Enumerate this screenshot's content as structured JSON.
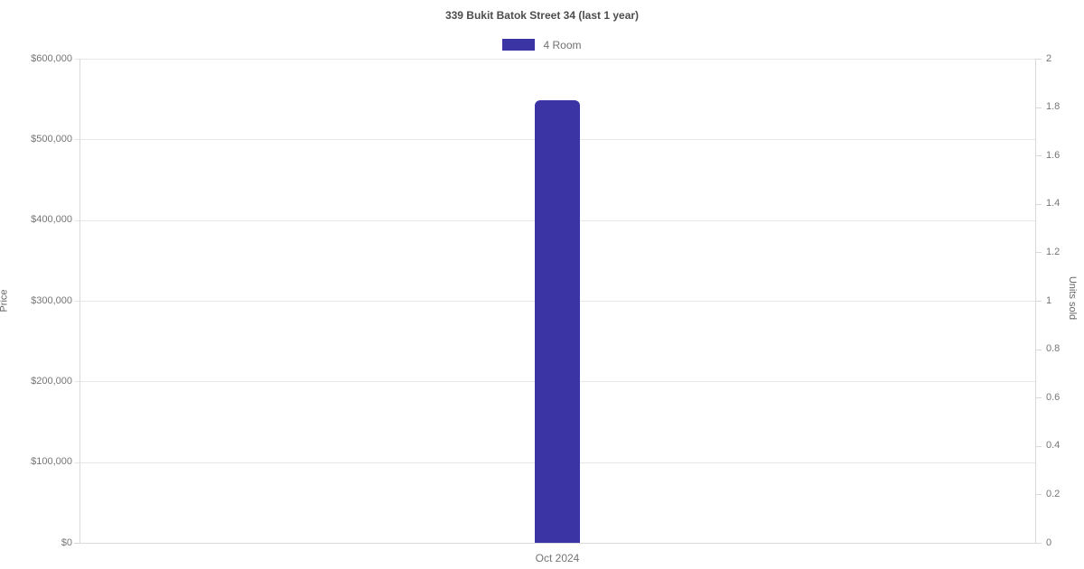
{
  "chart_data": {
    "type": "bar",
    "title": "339 Bukit Batok Street 34 (last 1 year)",
    "categories": [
      "Oct 2024"
    ],
    "series": [
      {
        "name": "4 Room",
        "values": [
          548000
        ],
        "color": "#3a34a4",
        "value_axis": "left"
      }
    ],
    "legend": [
      {
        "label": "4 Room",
        "color": "#3a34a4"
      }
    ],
    "legend_position": "top",
    "grid": "horizontal-left-axis-only",
    "left_axis": {
      "label": "Price",
      "min": 0,
      "max": 600000,
      "tick_step": 100000,
      "tick_labels": [
        "$0",
        "$100,000",
        "$200,000",
        "$300,000",
        "$400,000",
        "$500,000",
        "$600,000"
      ]
    },
    "right_axis": {
      "label": "Units sold",
      "min": 0,
      "max": 2,
      "tick_step": 0.2,
      "tick_labels": [
        "0",
        "0.2",
        "0.4",
        "0.6",
        "0.8",
        "1",
        "1.2",
        "1.4",
        "1.6",
        "1.8",
        "2"
      ]
    }
  },
  "colors": {
    "bar": "#3a34a4",
    "gridline": "#e6e6e6",
    "axis_line": "#d9d9d9",
    "tick_text": "#757575",
    "title_text": "#4d4d4d",
    "background": "#ffffff"
  }
}
